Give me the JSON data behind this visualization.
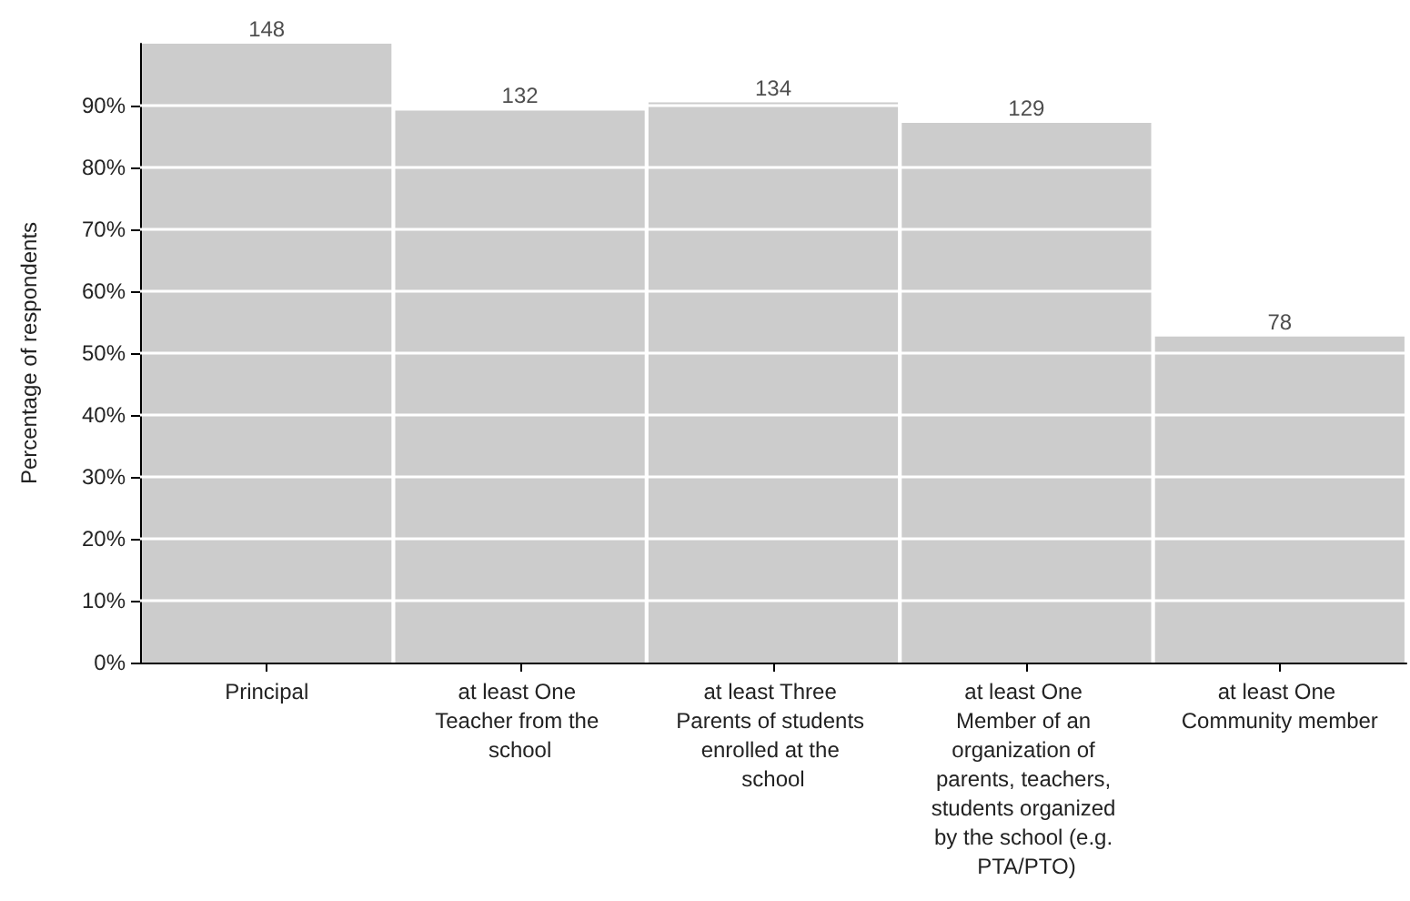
{
  "chart_data": {
    "type": "bar",
    "ylabel": "Percentage of respondents",
    "categories": [
      "Principal",
      "at least One Teacher from the school",
      "at least Three Parents of students enrolled at the school",
      "at least One Member of an organization of parents, teachers, students organized by the school (e.g. PTA/PTO)",
      "at least One Community member"
    ],
    "values": [
      100,
      89.2,
      90.5,
      87.2,
      52.7
    ],
    "annotations": [
      {
        "text": "148",
        "x": "Principal",
        "y": 100
      },
      {
        "text": "132",
        "x": "at least One Teacher from the school",
        "y": 89.2
      },
      {
        "text": "134",
        "x": "at least Three Parents of students enrolled at the school",
        "y": 90.5
      },
      {
        "text": "129",
        "x": "at least One Member of an organization of parents, teachers, students organized by the school (e.g. PTA/PTO)",
        "y": 87.2
      },
      {
        "text": "78",
        "x": "at least One Community member",
        "y": 52.7
      }
    ],
    "color": "#cccccc",
    "ylim": [
      0,
      100
    ],
    "yticks": [
      {
        "value": 0,
        "label": "0%"
      },
      {
        "value": 10,
        "label": "10%"
      },
      {
        "value": 20,
        "label": "20%"
      },
      {
        "value": 30,
        "label": "30%"
      },
      {
        "value": 40,
        "label": "40%"
      },
      {
        "value": 50,
        "label": "50%"
      },
      {
        "value": 60,
        "label": "60%"
      },
      {
        "value": 70,
        "label": "70%"
      },
      {
        "value": 80,
        "label": "80%"
      },
      {
        "value": 90,
        "label": "90%"
      }
    ],
    "grid": "y"
  }
}
